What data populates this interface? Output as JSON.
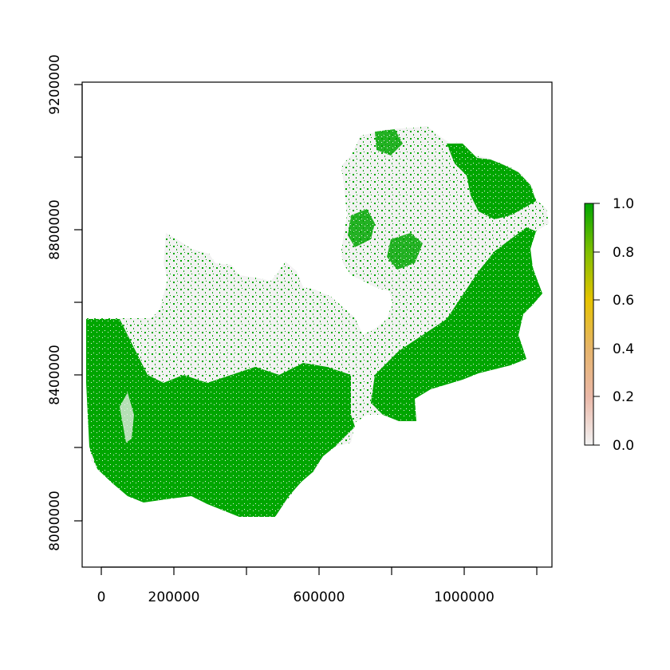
{
  "map": {
    "x_axis": {
      "ticks": [
        0,
        200000,
        400000,
        600000,
        800000,
        1000000,
        1200000
      ],
      "labels": [
        "0",
        "200000",
        "",
        "600000",
        "",
        "1000000",
        ""
      ]
    },
    "y_axis": {
      "ticks": [
        8000000,
        8200000,
        8400000,
        8600000,
        8800000,
        9000000,
        9200000
      ],
      "labels": [
        "8000000",
        "",
        "8400000",
        "",
        "8800000",
        "",
        "9200000"
      ]
    },
    "legend": {
      "ticks": [
        "0.0",
        "0.2",
        "0.4",
        "0.6",
        "0.8",
        "1.0"
      ],
      "colors": [
        "#f2f2f2",
        "#eab8a8",
        "#e6b46a",
        "#e6c300",
        "#7fbf00",
        "#00a600"
      ]
    },
    "colors": {
      "background_zero": "#f2f2f2",
      "forest_one": "#00a600"
    }
  }
}
